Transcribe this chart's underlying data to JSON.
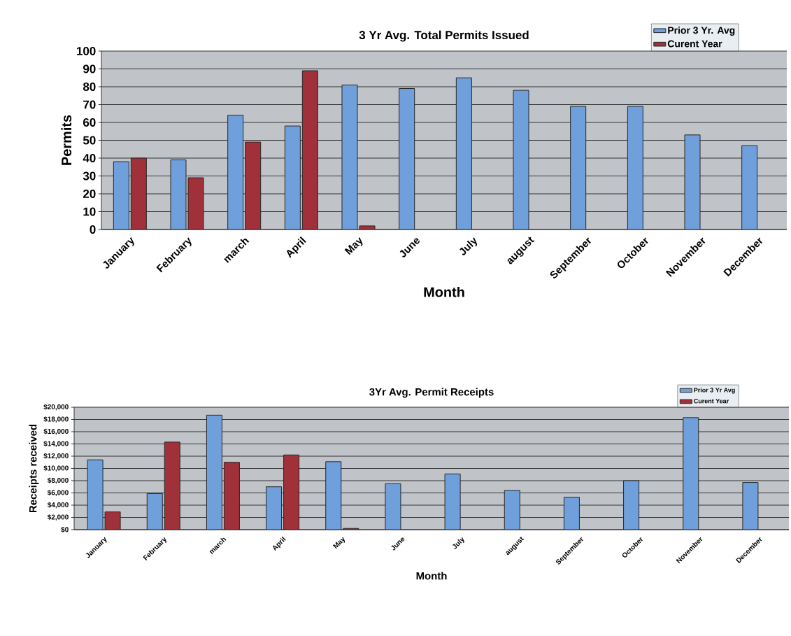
{
  "chart_data": [
    {
      "type": "bar",
      "title": "3 Yr Avg. Total Permits Issued",
      "xlabel": "Month",
      "ylabel": "Permits",
      "categories": [
        "January",
        "February",
        "march",
        "April",
        "May",
        "June",
        "July",
        "august",
        "September",
        "October",
        "November",
        "December"
      ],
      "series": [
        {
          "name": "Prior 3 Yr. Avg",
          "color": "#6fa0dc",
          "values": [
            38,
            39,
            64,
            58,
            81,
            79,
            85,
            78,
            69,
            69,
            53,
            47
          ]
        },
        {
          "name": "Curent Year",
          "color": "#a0303a",
          "values": [
            40,
            29,
            49,
            89,
            2,
            null,
            null,
            null,
            null,
            null,
            null,
            null
          ]
        }
      ],
      "ylim": [
        0,
        100
      ],
      "yticks": [
        0,
        10,
        20,
        30,
        40,
        50,
        60,
        70,
        80,
        90,
        100
      ],
      "grid": "y",
      "legend": "top right"
    },
    {
      "type": "bar",
      "title": "3Yr Avg. Permit Receipts",
      "xlabel": "Month",
      "ylabel": "Receipts received",
      "categories": [
        "January",
        "February",
        "march",
        "April",
        "May",
        "June",
        "July",
        "august",
        "September",
        "October",
        "November",
        "December"
      ],
      "series": [
        {
          "name": "Prior 3 Yr Avg",
          "color": "#6fa0dc",
          "values": [
            11400,
            5900,
            18700,
            7000,
            11100,
            7500,
            9100,
            6400,
            5300,
            8000,
            18300,
            7700
          ]
        },
        {
          "name": "Curent Year",
          "color": "#a0303a",
          "values": [
            2900,
            14300,
            11000,
            12200,
            200,
            null,
            null,
            null,
            null,
            null,
            null,
            null
          ]
        }
      ],
      "ylim": [
        0,
        20000
      ],
      "yticks": [
        {
          "value": 0,
          "label": "$0"
        },
        {
          "value": 2000,
          "label": "$2,000"
        },
        {
          "value": 4000,
          "label": "$4,000"
        },
        {
          "value": 6000,
          "label": "$6,000"
        },
        {
          "value": 8000,
          "label": "$8,000"
        },
        {
          "value": 10000,
          "label": "$10,000"
        },
        {
          "value": 12000,
          "label": "$12,000"
        },
        {
          "value": 14000,
          "label": "$14,000"
        },
        {
          "value": 16000,
          "label": "$16,000"
        },
        {
          "value": 18000,
          "label": "$18,000"
        },
        {
          "value": 20000,
          "label": "$20,000"
        }
      ],
      "grid": "y",
      "legend": "top right"
    }
  ]
}
